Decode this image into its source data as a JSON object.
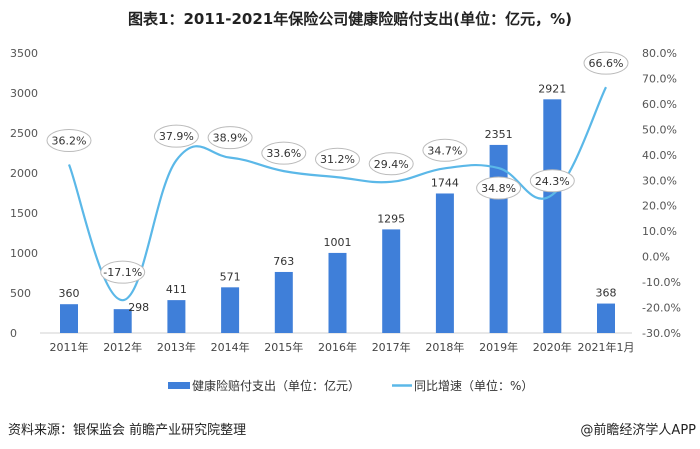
{
  "title": "图表1：2011-2021年保险公司健康险赔付支出(单位：亿元，%)",
  "chart_data": {
    "type": "bar+line",
    "categories": [
      "2011年",
      "2012年",
      "2013年",
      "2014年",
      "2015年",
      "2016年",
      "2017年",
      "2018年",
      "2019年",
      "2020年",
      "2021年1月"
    ],
    "series": [
      {
        "name": "健康险赔付支出（单位：亿元）",
        "type": "bar",
        "axis": "left",
        "color": "#3f7fd9",
        "values": [
          360,
          298,
          411,
          571,
          763,
          1001,
          1295,
          1744,
          2351,
          2921,
          368
        ]
      },
      {
        "name": "同比增速（单位：%）",
        "type": "line",
        "axis": "right",
        "color": "#5bb8e8",
        "values": [
          36.2,
          -17.1,
          37.9,
          38.9,
          33.6,
          31.2,
          29.4,
          34.7,
          34.8,
          24.3,
          66.6
        ]
      }
    ],
    "left_axis": {
      "min": 0,
      "max": 3500,
      "step": 500,
      "ticks": [
        "0",
        "500",
        "1000",
        "1500",
        "2000",
        "2500",
        "3000",
        "3500"
      ]
    },
    "right_axis": {
      "min": -30,
      "max": 80,
      "step": 10,
      "ticks": [
        "-30.0%",
        "-20.0%",
        "-10.0%",
        "0.0%",
        "10.0%",
        "20.0%",
        "30.0%",
        "40.0%",
        "50.0%",
        "60.0%",
        "70.0%",
        "80.0%"
      ]
    },
    "bar_labels": [
      "360",
      "298",
      "411",
      "571",
      "763",
      "1001",
      "1295",
      "1744",
      "2351",
      "2921",
      "368"
    ],
    "line_labels": [
      "36.2%",
      "-17.1%",
      "37.9%",
      "38.9%",
      "33.6%",
      "31.2%",
      "29.4%",
      "34.7%",
      "34.8%",
      "24.3%",
      "66.6%"
    ],
    "grid": false,
    "legend": "bottom"
  },
  "source": "资料来源：银保监会 前瞻产业研究院整理",
  "credit": "@前瞻经济学人APP"
}
